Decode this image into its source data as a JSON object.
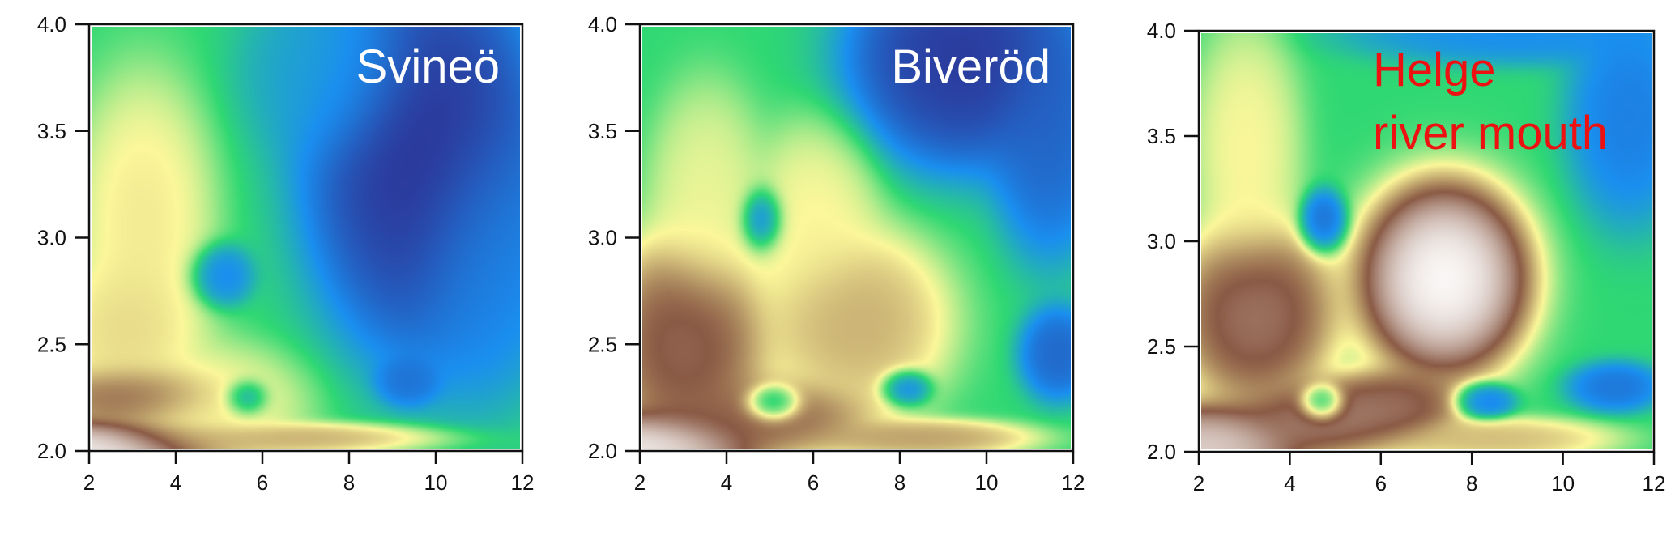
{
  "chart_data": [
    {
      "type": "heatmap",
      "title": "Svineö",
      "title_color": "#ffffff",
      "xlim": [
        2,
        12
      ],
      "ylim": [
        2.0,
        4.0
      ],
      "xticks": [
        "2",
        "4",
        "6",
        "8",
        "10",
        "12"
      ],
      "yticks": [
        "2.0",
        "2.5",
        "3.0",
        "3.5",
        "4.0"
      ],
      "grid": false,
      "colorscale": [
        "#2b3a9c",
        "#1a8ff0",
        "#2fd873",
        "#fcf79a",
        "#8a5a45",
        "#ffffff"
      ],
      "base_level": 2.0,
      "features": [
        {
          "x": 2.0,
          "y": 2.0,
          "level": 5.2,
          "sx": 2.2,
          "sy": 0.1
        },
        {
          "x": 3.0,
          "y": 2.25,
          "level": 4.2,
          "sx": 1.4,
          "sy": 0.1
        },
        {
          "x": 6.5,
          "y": 2.05,
          "level": 3.6,
          "sx": 2.5,
          "sy": 0.05
        },
        {
          "x": 3.2,
          "y": 3.1,
          "level": 3.2,
          "sx": 1.1,
          "sy": 0.45
        },
        {
          "x": 2.8,
          "y": 2.55,
          "level": 3.3,
          "sx": 1.2,
          "sy": 0.25
        },
        {
          "x": 4.8,
          "y": 2.2,
          "level": 3.1,
          "sx": 1.5,
          "sy": 0.2
        },
        {
          "x": 5.0,
          "y": 2.82,
          "level": 0.8,
          "sx": 0.5,
          "sy": 0.1
        },
        {
          "x": 5.6,
          "y": 2.24,
          "level": 0.6,
          "sx": 0.35,
          "sy": 0.06
        },
        {
          "x": 9.4,
          "y": 2.32,
          "level": 0.6,
          "sx": 0.5,
          "sy": 0.08
        },
        {
          "x": 9.8,
          "y": 3.4,
          "level": -0.3,
          "sx": 1.9,
          "sy": 0.65
        },
        {
          "x": 11.2,
          "y": 2.9,
          "level": 0.9,
          "sx": 1.2,
          "sy": 0.45
        },
        {
          "x": 7.6,
          "y": 3.8,
          "level": 1.2,
          "sx": 1.4,
          "sy": 0.3
        }
      ]
    },
    {
      "type": "heatmap",
      "title": "Biveröd",
      "title_color": "#ffffff",
      "xlim": [
        2,
        12
      ],
      "ylim": [
        2.0,
        4.0
      ],
      "xticks": [
        "2",
        "4",
        "6",
        "8",
        "10",
        "12"
      ],
      "yticks": [
        "2.0",
        "2.5",
        "3.0",
        "3.5",
        "4.0"
      ],
      "grid": false,
      "colorscale": [
        "#2b3a9c",
        "#1a8ff0",
        "#2fd873",
        "#fcf79a",
        "#8a5a45",
        "#ffffff"
      ],
      "base_level": 2.0,
      "features": [
        {
          "x": 2.0,
          "y": 2.0,
          "level": 5.2,
          "sx": 1.8,
          "sy": 0.12
        },
        {
          "x": 3.0,
          "y": 2.5,
          "level": 4.3,
          "sx": 1.3,
          "sy": 0.35
        },
        {
          "x": 5.0,
          "y": 2.15,
          "level": 4.1,
          "sx": 1.6,
          "sy": 0.12
        },
        {
          "x": 7.0,
          "y": 2.6,
          "level": 3.6,
          "sx": 1.5,
          "sy": 0.3
        },
        {
          "x": 8.5,
          "y": 2.05,
          "level": 3.7,
          "sx": 1.8,
          "sy": 0.06
        },
        {
          "x": 3.5,
          "y": 3.2,
          "level": 3.0,
          "sx": 0.9,
          "sy": 0.35
        },
        {
          "x": 6.0,
          "y": 3.1,
          "level": 3.1,
          "sx": 1.0,
          "sy": 0.3
        },
        {
          "x": 4.8,
          "y": 3.09,
          "level": 0.5,
          "sx": 0.35,
          "sy": 0.1
        },
        {
          "x": 5.05,
          "y": 2.21,
          "level": 0.4,
          "sx": 0.45,
          "sy": 0.06
        },
        {
          "x": 8.15,
          "y": 2.29,
          "level": 0.6,
          "sx": 0.4,
          "sy": 0.06
        },
        {
          "x": 11.7,
          "y": 2.45,
          "level": 0.4,
          "sx": 0.6,
          "sy": 0.15
        },
        {
          "x": 9.5,
          "y": 3.85,
          "level": -0.2,
          "sx": 1.8,
          "sy": 0.35
        },
        {
          "x": 11.5,
          "y": 3.5,
          "level": 0.4,
          "sx": 0.9,
          "sy": 0.4
        }
      ]
    },
    {
      "type": "heatmap",
      "title": "Helge\nriver mouth",
      "title_lines": [
        "Helge",
        "river mouth"
      ],
      "title_color": "#ee1111",
      "xlim": [
        2,
        12
      ],
      "ylim": [
        2.0,
        4.0
      ],
      "xticks": [
        "2",
        "4",
        "6",
        "8",
        "10",
        "12"
      ],
      "yticks": [
        "2.0",
        "2.5",
        "3.0",
        "3.5",
        "4.0"
      ],
      "grid": false,
      "colorscale": [
        "#2b3a9c",
        "#1a8ff0",
        "#2fd873",
        "#fcf79a",
        "#8a5a45",
        "#ffffff"
      ],
      "base_level": 2.0,
      "features": [
        {
          "x": 2.0,
          "y": 2.0,
          "level": 5.0,
          "sx": 1.6,
          "sy": 0.15
        },
        {
          "x": 7.4,
          "y": 2.82,
          "level": 5.3,
          "sx": 1.3,
          "sy": 0.32
        },
        {
          "x": 3.2,
          "y": 2.65,
          "level": 4.4,
          "sx": 1.2,
          "sy": 0.3
        },
        {
          "x": 4.8,
          "y": 2.15,
          "level": 4.4,
          "sx": 1.2,
          "sy": 0.12
        },
        {
          "x": 6.2,
          "y": 2.2,
          "level": 4.3,
          "sx": 1.1,
          "sy": 0.12
        },
        {
          "x": 8.5,
          "y": 2.05,
          "level": 3.5,
          "sx": 1.8,
          "sy": 0.07
        },
        {
          "x": 3.0,
          "y": 3.45,
          "level": 3.1,
          "sx": 0.8,
          "sy": 0.4
        },
        {
          "x": 4.7,
          "y": 3.1,
          "level": 0.5,
          "sx": 0.35,
          "sy": 0.1
        },
        {
          "x": 4.7,
          "y": 2.22,
          "level": 0.6,
          "sx": 0.35,
          "sy": 0.06
        },
        {
          "x": 8.3,
          "y": 2.23,
          "level": 0.7,
          "sx": 0.45,
          "sy": 0.06
        },
        {
          "x": 11.2,
          "y": 2.3,
          "level": 0.6,
          "sx": 0.7,
          "sy": 0.08
        },
        {
          "x": 11.5,
          "y": 3.6,
          "level": 0.7,
          "sx": 0.9,
          "sy": 0.35
        },
        {
          "x": 9.0,
          "y": 4.0,
          "level": 0.9,
          "sx": 2.5,
          "sy": 0.1
        }
      ]
    }
  ]
}
